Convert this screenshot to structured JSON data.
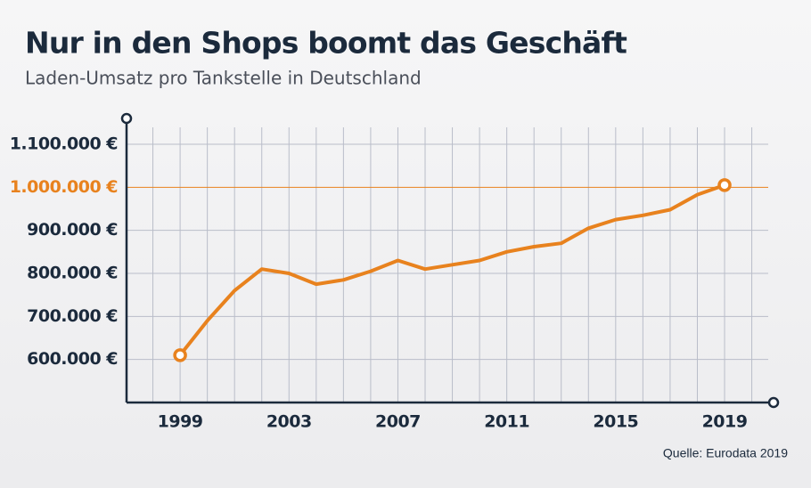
{
  "chart_data": {
    "type": "line",
    "title": "Nur in den Shops boomt das Geschäft",
    "subtitle": "Laden-Umsatz pro Tankstelle in Deutschland",
    "source": "Quelle: Eurodata 2019",
    "x": [
      1999,
      2000,
      2001,
      2002,
      2003,
      2004,
      2005,
      2006,
      2007,
      2008,
      2009,
      2010,
      2011,
      2012,
      2013,
      2014,
      2015,
      2016,
      2017,
      2018,
      2019
    ],
    "values": [
      610000,
      690000,
      760000,
      810000,
      800000,
      775000,
      785000,
      805000,
      830000,
      810000,
      820000,
      830000,
      850000,
      862000,
      870000,
      905000,
      925000,
      935000,
      948000,
      983000,
      1005000
    ],
    "color": "#e8821e",
    "xlim": [
      1997,
      2020.8
    ],
    "xticks": [
      1999,
      2003,
      2007,
      2011,
      2015,
      2019
    ],
    "xminor_ticks": [
      1998,
      1999,
      2000,
      2001,
      2002,
      2003,
      2004,
      2005,
      2006,
      2007,
      2008,
      2009,
      2010,
      2011,
      2012,
      2013,
      2014,
      2015,
      2016,
      2017,
      2018,
      2019,
      2020
    ],
    "ylim": [
      500000,
      1160000
    ],
    "yticks": [
      {
        "value": 600000,
        "label": "600.000 €"
      },
      {
        "value": 700000,
        "label": "700.000 €"
      },
      {
        "value": 800000,
        "label": "800.000 €"
      },
      {
        "value": 900000,
        "label": "900.000 €"
      },
      {
        "value": 1000000,
        "label": "1.000.000 €"
      },
      {
        "value": 1100000,
        "label": "1.100.000 €"
      }
    ],
    "highlight_ytick": 1000000,
    "grid": true
  }
}
